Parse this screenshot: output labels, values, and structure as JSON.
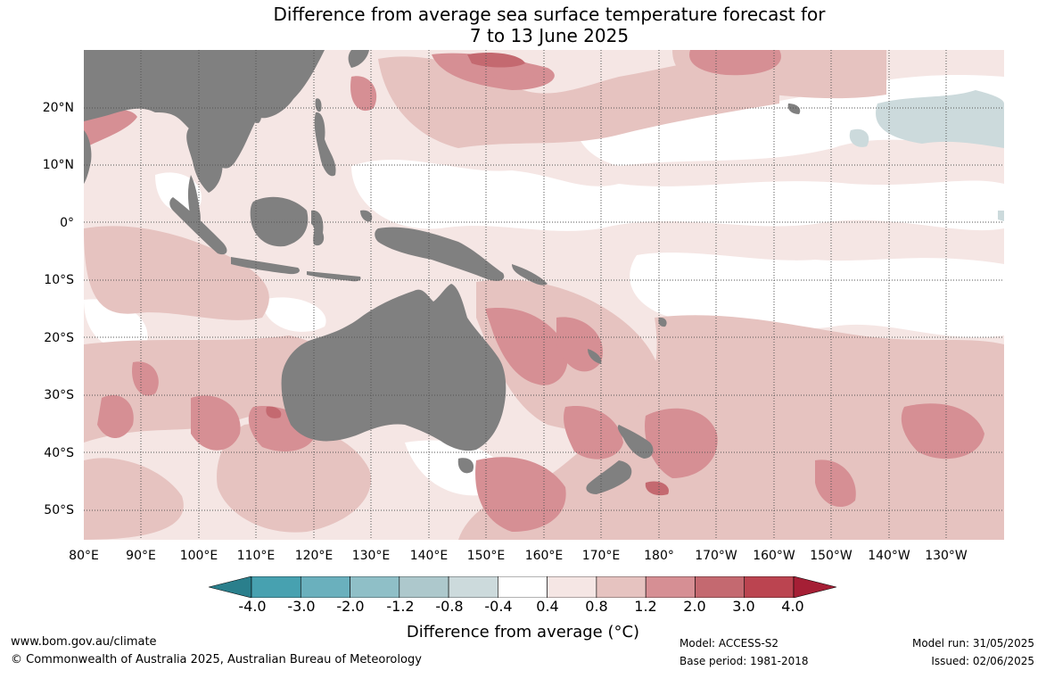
{
  "title_line1": "Difference from average sea surface temperature forecast for",
  "title_line2": "7 to 13 June 2025",
  "latitude_labels": [
    "20°N",
    "10°N",
    "0°",
    "10°S",
    "20°S",
    "30°S",
    "40°S",
    "50°S"
  ],
  "longitude_labels": [
    "80°E",
    "90°E",
    "100°E",
    "110°E",
    "120°E",
    "130°E",
    "140°E",
    "150°E",
    "160°E",
    "170°E",
    "180°",
    "170°W",
    "160°W",
    "150°W",
    "140°W",
    "130°W"
  ],
  "colorbar": {
    "ticks": [
      "-4.0",
      "-3.0",
      "-2.0",
      "-1.2",
      "-0.8",
      "-0.4",
      "0.4",
      "0.8",
      "1.2",
      "2.0",
      "3.0",
      "4.0"
    ],
    "colors": [
      "#2a7f8c",
      "#47a1b0",
      "#6ab0bd",
      "#8fbfc7",
      "#adc8cc",
      "#ccdadc",
      "#ffffff",
      "#f5e6e4",
      "#e6c3c0",
      "#d68f94",
      "#c46970",
      "#bb4450",
      "#a51f35"
    ],
    "label": "Difference from average (°C)"
  },
  "colors": {
    "land": "#808080",
    "ocean_neutral": "#ffffff",
    "warm_light": "#f5e6e4",
    "warm_medium": "#e6c3c0",
    "warm_strong": "#d68f94",
    "warm_stronger": "#c46970",
    "cool_light": "#ccdadc"
  },
  "footer": {
    "website": "www.bom.gov.au/climate",
    "copyright": "© Commonwealth of Australia 2025, Australian Bureau of Meteorology",
    "model": "Model: ACCESS-S2",
    "base_period": "Base period: 1981-2018",
    "model_run": "Model run: 31/05/2025",
    "issued": "Issued: 02/06/2025"
  }
}
